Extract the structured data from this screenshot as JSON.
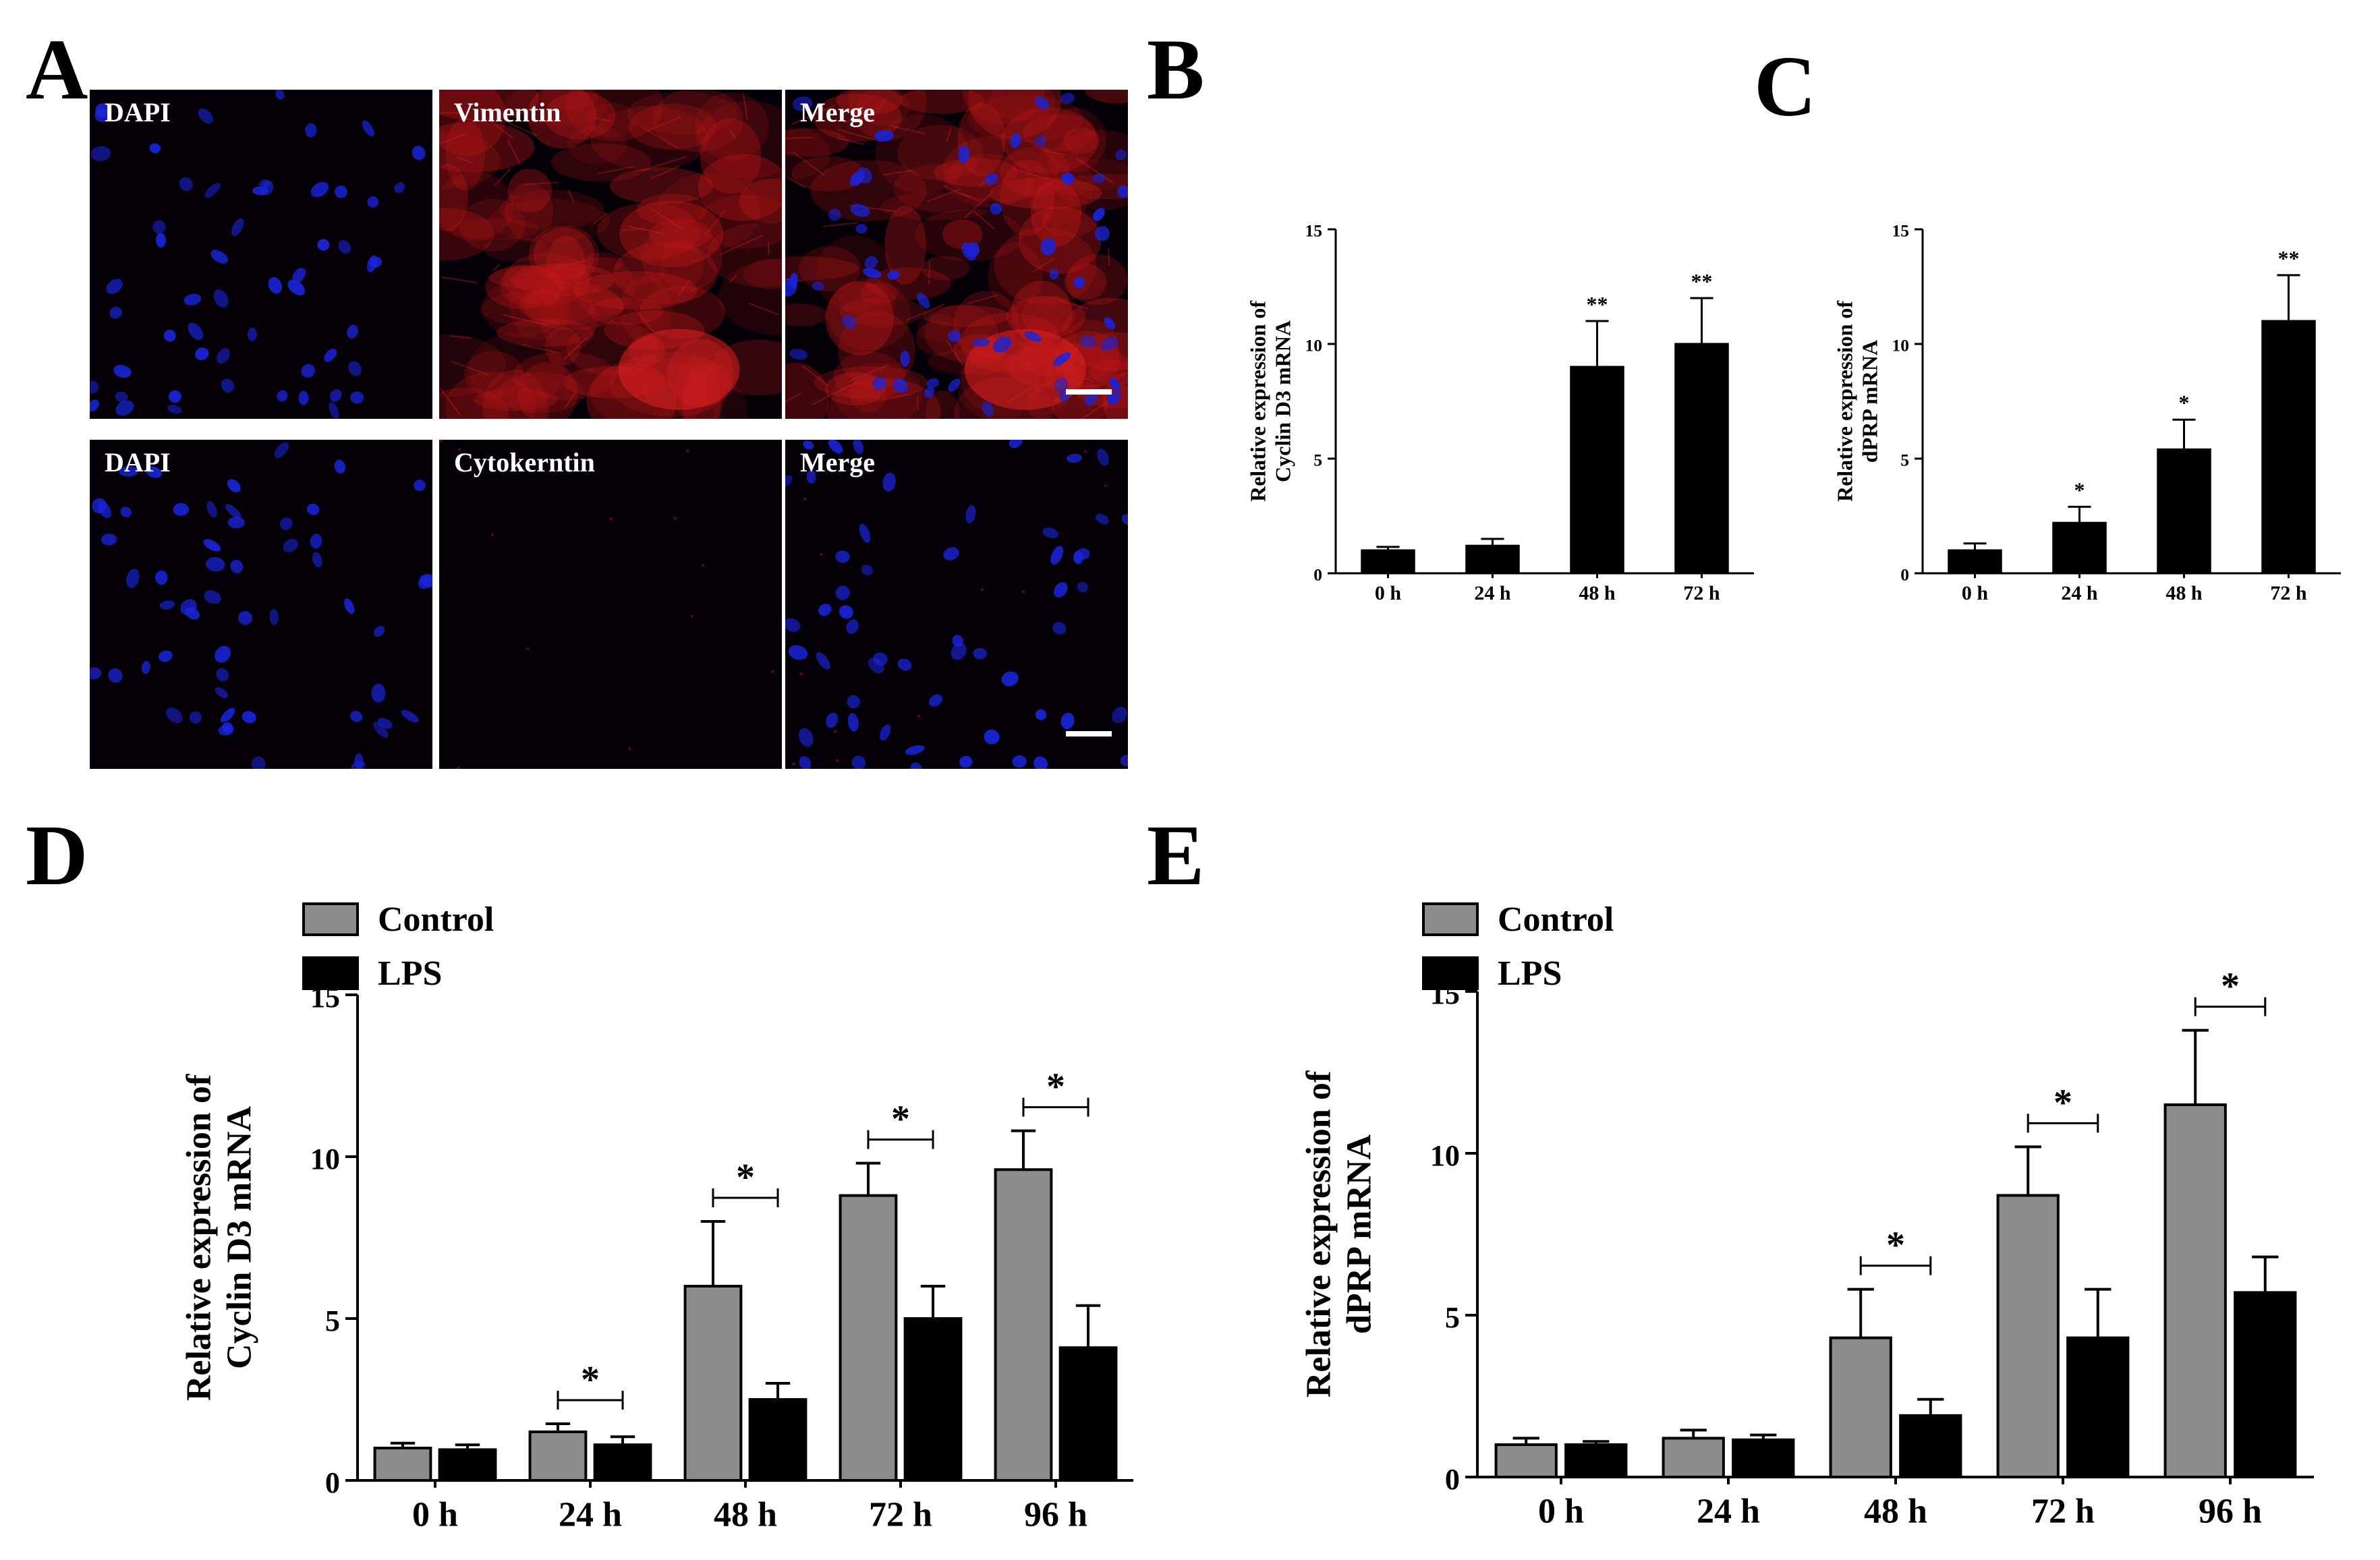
{
  "panels": {
    "a": {
      "letter": "A"
    },
    "b": {
      "letter": "B"
    },
    "c": {
      "letter": "C"
    },
    "d": {
      "letter": "D"
    },
    "e": {
      "letter": "E"
    }
  },
  "micrographs": {
    "row1": [
      {
        "label": "DAPI",
        "stain": "dapi"
      },
      {
        "label": "Vimentin",
        "stain": "vimentin"
      },
      {
        "label": "Merge",
        "stain": "merge-vimentin"
      }
    ],
    "row2": [
      {
        "label": "DAPI",
        "stain": "dapi"
      },
      {
        "label": "Cytokerntin",
        "stain": "cytokeratin"
      },
      {
        "label": "Merge",
        "stain": "merge-cytokeratin"
      }
    ],
    "colors": {
      "nucleus": "#1a24d8",
      "vimentin": "#c81818",
      "background": "#050008"
    }
  },
  "chart_data": [
    {
      "id": "b",
      "type": "bar",
      "categories": [
        "0 h",
        "24 h",
        "48 h",
        "72 h"
      ],
      "series": [
        {
          "values": [
            1.0,
            1.2,
            9.0,
            10.0
          ],
          "errors": [
            0.15,
            0.3,
            2.0,
            2.0
          ],
          "color": "#000000"
        }
      ],
      "significance": [
        "",
        "",
        "**",
        "**"
      ],
      "ylabel": [
        "Relative expression of",
        "Cyclin D3 mRNA"
      ],
      "yticks": [
        0,
        5,
        10,
        15
      ],
      "ylim": [
        0,
        15
      ]
    },
    {
      "id": "c",
      "type": "bar",
      "categories": [
        "0 h",
        "24 h",
        "48 h",
        "72 h"
      ],
      "series": [
        {
          "values": [
            1.0,
            2.2,
            5.4,
            11.0
          ],
          "errors": [
            0.3,
            0.7,
            1.3,
            2.0
          ],
          "color": "#000000"
        }
      ],
      "significance": [
        "",
        "*",
        "*",
        "**"
      ],
      "ylabel": [
        "Relative expression of",
        "dPRP mRNA"
      ],
      "yticks": [
        0,
        5,
        10,
        15
      ],
      "ylim": [
        0,
        15
      ]
    },
    {
      "id": "d",
      "type": "bar",
      "categories": [
        "0 h",
        "24 h",
        "48 h",
        "72 h",
        "96 h"
      ],
      "series": [
        {
          "name": "Control",
          "values": [
            1.0,
            1.5,
            6.0,
            8.8,
            9.6
          ],
          "errors": [
            0.15,
            0.25,
            2.0,
            1.0,
            1.2
          ],
          "color": "#8c8c8c"
        },
        {
          "name": "LPS",
          "values": [
            0.95,
            1.1,
            2.5,
            5.0,
            4.1
          ],
          "errors": [
            0.15,
            0.25,
            0.5,
            1.0,
            1.3
          ],
          "color": "#000000"
        }
      ],
      "significance": [
        "",
        "*",
        "*",
        "*",
        "*"
      ],
      "ylabel": [
        "Relative expression of",
        "Cyclin D3 mRNA"
      ],
      "yticks": [
        0,
        5,
        10,
        15
      ],
      "ylim": [
        0,
        15
      ],
      "legend": "top-left"
    },
    {
      "id": "e",
      "type": "bar",
      "categories": [
        "0 h",
        "24 h",
        "48 h",
        "72 h",
        "96 h"
      ],
      "series": [
        {
          "name": "Control",
          "values": [
            1.0,
            1.2,
            4.3,
            8.7,
            11.5
          ],
          "errors": [
            0.2,
            0.25,
            1.5,
            1.5,
            2.3
          ],
          "color": "#8c8c8c"
        },
        {
          "name": "LPS",
          "values": [
            1.0,
            1.15,
            1.9,
            4.3,
            5.7
          ],
          "errors": [
            0.1,
            0.15,
            0.5,
            1.5,
            1.1
          ],
          "color": "#000000"
        }
      ],
      "significance": [
        "",
        "",
        "*",
        "*",
        "*"
      ],
      "ylabel": [
        "Relative expression of",
        "dPRP mRNA"
      ],
      "yticks": [
        0,
        5,
        10,
        15
      ],
      "ylim": [
        0,
        15
      ],
      "legend": "top-left"
    }
  ]
}
